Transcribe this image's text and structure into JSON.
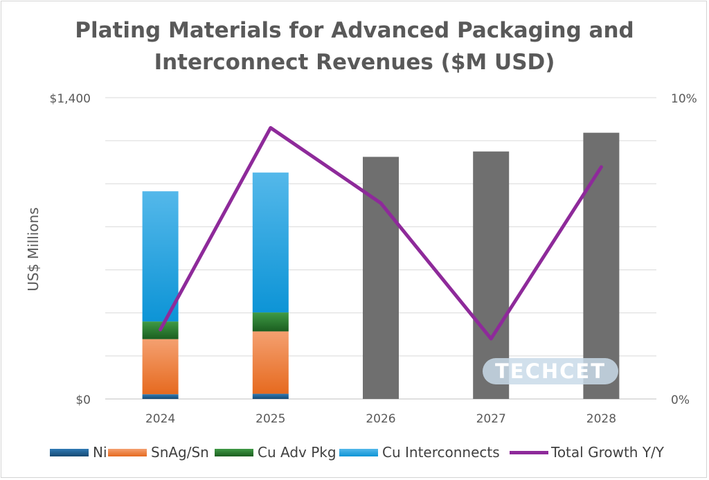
{
  "chart_data": {
    "type": "bar",
    "title_line1": "Plating Materials for Advanced Packaging and",
    "title_line2": "Interconnect Revenues ($M USD)",
    "ylabel": "US$ Millions",
    "xlabel": "",
    "categories": [
      "2024",
      "2025",
      "2026",
      "2027",
      "2028"
    ],
    "ylim": [
      0,
      1400
    ],
    "y_ticks": [
      "$0",
      "$1,400"
    ],
    "y2lim": [
      0,
      10
    ],
    "y2_ticks": [
      "0%",
      "10%"
    ],
    "series": [
      {
        "name": "Ni",
        "values": [
          22,
          24,
          null,
          null,
          null
        ],
        "color": "#1f5f8b"
      },
      {
        "name": "SnAg/Sn",
        "values": [
          256,
          290,
          null,
          null,
          null
        ],
        "color": "#ed7d31"
      },
      {
        "name": "Cu Adv Pkg",
        "values": [
          82,
          88,
          null,
          null,
          null
        ],
        "color": "#2e7d32"
      },
      {
        "name": "Cu Interconnects",
        "values": [
          605,
          650,
          null,
          null,
          null
        ],
        "color": "#29a8e0"
      },
      {
        "name": "",
        "values": [
          null,
          null,
          1125,
          1150,
          1237
        ],
        "color": "#6f6f6f"
      }
    ],
    "line_series": {
      "name": "Total Growth Y/Y",
      "axis": "secondary",
      "values": [
        2.3,
        9.0,
        6.5,
        2.0,
        7.7
      ],
      "color": "#8e2a9a"
    },
    "grid": true,
    "legend_position": "bottom",
    "watermark": "TECHCET"
  }
}
